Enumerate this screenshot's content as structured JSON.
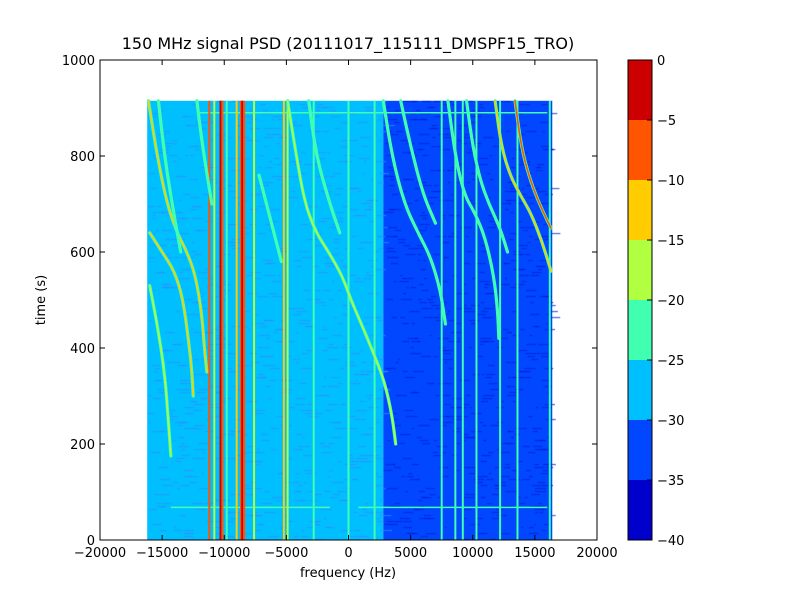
{
  "chart_data": {
    "type": "heatmap",
    "title": "150 MHz signal PSD (20111017_115111_DMSPF15_TRO)",
    "xlabel": "frequency (Hz)",
    "ylabel": "time (s)",
    "xlim": [
      -20000,
      20000
    ],
    "ylim": [
      0,
      1000
    ],
    "xticks": [
      -20000,
      -15000,
      -10000,
      -5000,
      0,
      5000,
      10000,
      15000,
      20000
    ],
    "yticks": [
      0,
      200,
      400,
      600,
      800,
      1000
    ],
    "data_extent": {
      "x": [
        -16200,
        16400
      ],
      "y": [
        0,
        915
      ]
    },
    "background_regions": [
      {
        "x": [
          -16200,
          2800
        ],
        "level": -30
      },
      {
        "x": [
          2800,
          16400
        ],
        "level": -35
      }
    ],
    "vertical_lines": [
      {
        "x": -11200,
        "level": -10
      },
      {
        "x": -10800,
        "level": -20
      },
      {
        "x": -10300,
        "level": -5
      },
      {
        "x": -10150,
        "level": -10
      },
      {
        "x": -9800,
        "level": -25
      },
      {
        "x": -9000,
        "level": -15
      },
      {
        "x": -8650,
        "level": -10
      },
      {
        "x": -8550,
        "level": -5
      },
      {
        "x": -8400,
        "level": -10
      },
      {
        "x": -7600,
        "level": -20
      },
      {
        "x": -5200,
        "level": -15
      },
      {
        "x": -4900,
        "level": -20
      },
      {
        "x": -2800,
        "level": -25
      },
      {
        "x": 0,
        "level": -25
      },
      {
        "x": 2100,
        "level": -25
      },
      {
        "x": 7500,
        "level": -25
      },
      {
        "x": 8600,
        "level": -25
      },
      {
        "x": 9200,
        "level": -25
      },
      {
        "x": 10300,
        "level": -25
      },
      {
        "x": 12200,
        "level": -25
      },
      {
        "x": 13600,
        "level": -25
      },
      {
        "x": 16200,
        "level": -25
      }
    ],
    "traces": [
      {
        "level": -15,
        "points": [
          [
            -16100,
            915
          ],
          [
            -15400,
            800
          ],
          [
            -14600,
            700
          ],
          [
            -13800,
            640
          ],
          [
            -13000,
            600
          ],
          [
            -12300,
            550
          ],
          [
            -11800,
            470
          ],
          [
            -11600,
            400
          ],
          [
            -11400,
            350
          ]
        ]
      },
      {
        "level": -15,
        "points": [
          [
            -16000,
            640
          ],
          [
            -15000,
            600
          ],
          [
            -14000,
            560
          ],
          [
            -13300,
            500
          ],
          [
            -12800,
            400
          ],
          [
            -12600,
            350
          ],
          [
            -12500,
            300
          ]
        ]
      },
      {
        "level": -20,
        "points": [
          [
            -16000,
            530
          ],
          [
            -15400,
            450
          ],
          [
            -14800,
            350
          ],
          [
            -14500,
            250
          ],
          [
            -14300,
            175
          ]
        ]
      },
      {
        "level": -25,
        "points": [
          [
            -15300,
            915
          ],
          [
            -14800,
            800
          ],
          [
            -14200,
            700
          ],
          [
            -13500,
            600
          ]
        ]
      },
      {
        "level": -25,
        "points": [
          [
            -12200,
            915
          ],
          [
            -11900,
            850
          ],
          [
            -11500,
            780
          ],
          [
            -11000,
            700
          ]
        ]
      },
      {
        "level": -25,
        "points": [
          [
            -7200,
            760
          ],
          [
            -6700,
            710
          ],
          [
            -6100,
            650
          ],
          [
            -5400,
            580
          ]
        ]
      },
      {
        "level": -20,
        "points": [
          [
            -4900,
            915
          ],
          [
            -4200,
            800
          ],
          [
            -3500,
            700
          ],
          [
            -2600,
            640
          ],
          [
            -1600,
            600
          ],
          [
            -500,
            550
          ],
          [
            200,
            500
          ],
          [
            1200,
            440
          ],
          [
            2000,
            390
          ],
          [
            2900,
            330
          ],
          [
            3500,
            260
          ],
          [
            3800,
            200
          ]
        ]
      },
      {
        "level": -25,
        "points": [
          [
            -3200,
            915
          ],
          [
            -2600,
            800
          ],
          [
            -1500,
            700
          ],
          [
            -700,
            640
          ]
        ]
      },
      {
        "level": -25,
        "points": [
          [
            2800,
            915
          ],
          [
            3500,
            800
          ],
          [
            4500,
            700
          ],
          [
            5600,
            640
          ],
          [
            6600,
            590
          ],
          [
            7400,
            520
          ],
          [
            7800,
            450
          ]
        ]
      },
      {
        "level": -25,
        "points": [
          [
            4200,
            915
          ],
          [
            5000,
            820
          ],
          [
            6000,
            720
          ],
          [
            7000,
            660
          ]
        ]
      },
      {
        "level": -25,
        "points": [
          [
            8000,
            915
          ],
          [
            8600,
            800
          ],
          [
            9300,
            720
          ],
          [
            10200,
            680
          ],
          [
            11000,
            630
          ],
          [
            11700,
            550
          ],
          [
            12000,
            480
          ],
          [
            12100,
            420
          ]
        ]
      },
      {
        "level": -25,
        "points": [
          [
            9500,
            915
          ],
          [
            10000,
            820
          ],
          [
            10600,
            750
          ],
          [
            11300,
            700
          ],
          [
            12200,
            650
          ],
          [
            12800,
            600
          ]
        ]
      },
      {
        "level": -15,
        "points": [
          [
            11800,
            915
          ],
          [
            12300,
            820
          ],
          [
            13000,
            760
          ],
          [
            13800,
            720
          ],
          [
            14700,
            680
          ],
          [
            15600,
            620
          ],
          [
            16300,
            560
          ]
        ]
      },
      {
        "level": -10,
        "points": [
          [
            13400,
            915
          ],
          [
            13900,
            820
          ],
          [
            14500,
            760
          ],
          [
            15200,
            710
          ],
          [
            16000,
            665
          ],
          [
            16300,
            650
          ]
        ]
      }
    ],
    "horizontal_lines": [
      {
        "y": 890,
        "x": [
          -12000,
          16000
        ],
        "level": -25
      },
      {
        "y": 68,
        "x": [
          -14300,
          -1500
        ],
        "level": -25
      },
      {
        "y": 68,
        "x": [
          800,
          16000
        ],
        "level": -25
      }
    ],
    "colorbar": {
      "levels": [
        -40,
        -35,
        -30,
        -25,
        -20,
        -15,
        -10,
        -5,
        0
      ],
      "colors": [
        "#0000cc",
        "#0047ff",
        "#00bfff",
        "#40ffb0",
        "#b0ff40",
        "#ffcc00",
        "#ff5500",
        "#cc0000"
      ],
      "tick_labels": [
        "0",
        "−5",
        "−10",
        "−15",
        "−20",
        "−25",
        "−30",
        "−35",
        "−40"
      ]
    }
  }
}
